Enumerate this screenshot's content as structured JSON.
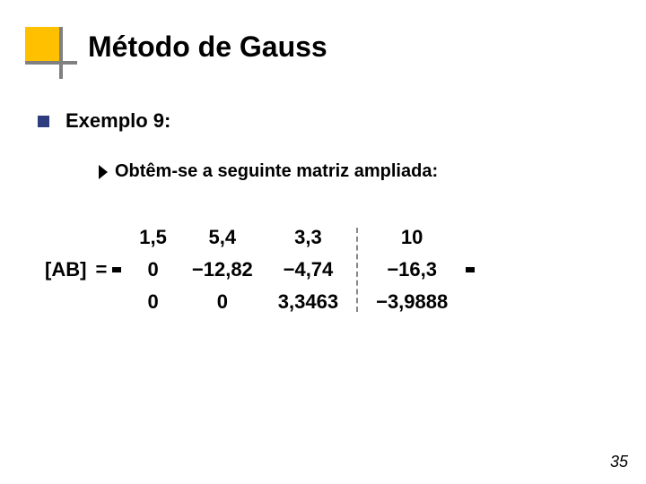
{
  "title": "Método de Gauss",
  "bullet": "Exemplo 9:",
  "sub": "Obtêm-se a seguinte matriz ampliada:",
  "matrix": {
    "lhs": "[AB]",
    "eq": "=",
    "rows": [
      [
        "1,5",
        "5,4",
        "3,3"
      ],
      [
        "0",
        "−12,82",
        "−4,74"
      ],
      [
        "0",
        "0",
        "3,3463"
      ]
    ],
    "aug": [
      "10",
      "−16,3",
      "−3,9888"
    ]
  },
  "page": "35",
  "colors": {
    "accent_yellow": "#ffc000",
    "bullet_blue": "#2e3c80",
    "gray": "#808080"
  }
}
